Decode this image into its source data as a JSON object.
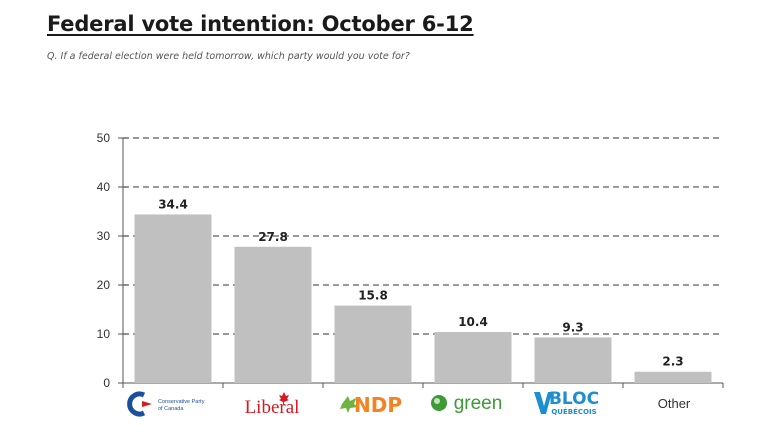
{
  "header": {
    "title": "Federal vote intention: October 6-12",
    "question": "Q. If a federal election were held tomorrow, which party would you vote for?"
  },
  "chart_data": {
    "type": "bar",
    "categories": [
      "Conservative Party of Canada",
      "Liberal",
      "NDP",
      "green",
      "BLOC QUÉBÉCOIS",
      "Other"
    ],
    "values": [
      34.4,
      27.8,
      15.8,
      10.4,
      9.3,
      2.3
    ],
    "title": "Federal vote intention: October 6-12",
    "subtitle": "Q. If a federal election were held tomorrow, which party would you vote for?",
    "xlabel": "",
    "ylabel": "",
    "ylim": [
      0,
      50
    ],
    "yticks": [
      0,
      10,
      20,
      30,
      40,
      50
    ],
    "grid": "dashed-horizontal",
    "bar_color": "#c0c0c0",
    "logo_labels": {
      "conservative": [
        "Conservative Party",
        "of Canada"
      ],
      "liberal": "Liberal",
      "ndp": "NDP",
      "green": "green",
      "bloc": [
        "BLOC",
        "QUÉBÉCOIS"
      ],
      "other": "Other"
    },
    "colors": {
      "conservative": "#1a4f9c",
      "liberal": "#d71920",
      "ndp": "#f58220",
      "ndp_leaf": "#6cb33f",
      "green": "#3d9b35",
      "bloc": "#1b8fd0"
    }
  }
}
